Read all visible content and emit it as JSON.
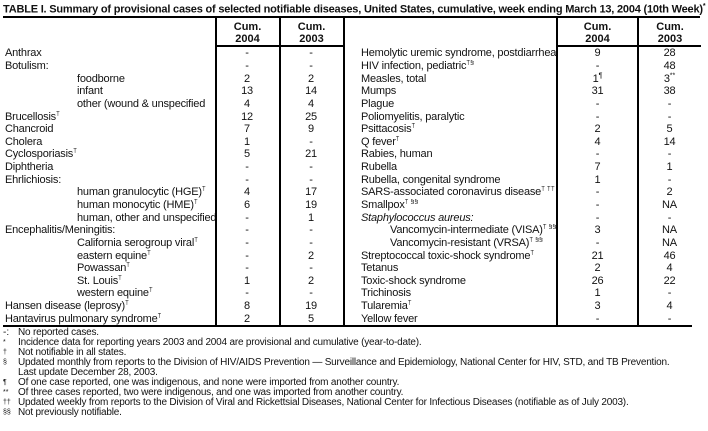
{
  "title": "TABLE I. Summary of provisional cases of selected notifiable diseases, United States, cumulative, week ending March 13, 2004 (10th Week)",
  "title_sup": "*",
  "columns": {
    "cum": "Cum.",
    "y2004": "2004",
    "y2003": "2003"
  },
  "left_rows": [
    {
      "label": "Anthrax",
      "cum2004": "-",
      "cum2003": "-"
    },
    {
      "label": "Botulism:",
      "cum2004": "-",
      "cum2003": "-"
    },
    {
      "label": "foodborne",
      "indent": true,
      "cum2004": "2",
      "cum2003": "2"
    },
    {
      "label": "infant",
      "indent": true,
      "cum2004": "13",
      "cum2003": "14"
    },
    {
      "label": "other (wound & unspecified",
      "indent": true,
      "cum2004": "4",
      "cum2003": "4"
    },
    {
      "label": "Brucellosis",
      "sup": "†",
      "cum2004": "12",
      "cum2003": "25"
    },
    {
      "label": "Chancroid",
      "cum2004": "7",
      "cum2003": "9"
    },
    {
      "label": "Cholera",
      "cum2004": "1",
      "cum2003": "-"
    },
    {
      "label": "Cyclosporiasis",
      "sup": "†",
      "cum2004": "5",
      "cum2003": "21"
    },
    {
      "label": "Diphtheria",
      "cum2004": "-",
      "cum2003": "-"
    },
    {
      "label": "Ehrlichiosis:",
      "cum2004": "-",
      "cum2003": "-"
    },
    {
      "label": "human granulocytic (HGE)",
      "sup": "†",
      "indent": true,
      "cum2004": "4",
      "cum2003": "17"
    },
    {
      "label": "human monocytic (HME)",
      "sup": "†",
      "indent": true,
      "cum2004": "6",
      "cum2003": "19"
    },
    {
      "label": "human, other and unspecified",
      "indent": true,
      "cum2004": "-",
      "cum2003": "1"
    },
    {
      "label": "Encephalitis/Meningitis:",
      "cum2004": "-",
      "cum2003": "-"
    },
    {
      "label": "California serogroup viral",
      "sup": "†",
      "indent": true,
      "cum2004": "-",
      "cum2003": "-"
    },
    {
      "label": "eastern equine",
      "sup": "†",
      "indent": true,
      "cum2004": "-",
      "cum2003": "2"
    },
    {
      "label": "Powassan",
      "sup": "†",
      "indent": true,
      "cum2004": "-",
      "cum2003": "-"
    },
    {
      "label": "St. Louis",
      "sup": "†",
      "indent": true,
      "cum2004": "1",
      "cum2003": "2"
    },
    {
      "label": "western equine",
      "sup": "†",
      "indent": true,
      "cum2004": "-",
      "cum2003": "-"
    },
    {
      "label": "Hansen disease (leprosy)",
      "sup": "†",
      "cum2004": "8",
      "cum2003": "19"
    },
    {
      "label": "Hantavirus pulmonary syndrome",
      "sup": "†",
      "cum2004": "2",
      "cum2003": "5"
    }
  ],
  "right_rows": [
    {
      "label": "Hemolytic uremic syndrome, postdiarrheal",
      "sup": "†",
      "cum2004": "9",
      "cum2003": "28"
    },
    {
      "label": "HIV infection, pediatric",
      "sup": "†§",
      "cum2004": "-",
      "cum2003": "48"
    },
    {
      "label": "Measles, total",
      "cum2004": "1",
      "cum2004_sup": "¶",
      "cum2003": "3",
      "cum2003_sup": "**"
    },
    {
      "label": "Mumps",
      "cum2004": "31",
      "cum2003": "38"
    },
    {
      "label": "Plague",
      "cum2004": "-",
      "cum2003": "-"
    },
    {
      "label": "Poliomyelitis, paralytic",
      "cum2004": "-",
      "cum2003": "-"
    },
    {
      "label": "Psittacosis",
      "sup": "†",
      "cum2004": "2",
      "cum2003": "5"
    },
    {
      "label": "Q fever",
      "sup": "†",
      "cum2004": "4",
      "cum2003": "14"
    },
    {
      "label": "Rabies, human",
      "cum2004": "-",
      "cum2003": "-"
    },
    {
      "label": "Rubella",
      "cum2004": "7",
      "cum2003": "1"
    },
    {
      "label": "Rubella, congenital syndrome",
      "cum2004": "1",
      "cum2003": "-"
    },
    {
      "label": "SARS-associated coronavirus disease",
      "sup": "† ††",
      "cum2004": "-",
      "cum2003": "2"
    },
    {
      "label": "Smallpox",
      "sup": "† §§",
      "cum2004": "-",
      "cum2003": "NA"
    },
    {
      "label": "Staphylococcus aureus:",
      "italic": true,
      "cum2004": "-",
      "cum2003": "-"
    },
    {
      "label": "Vancomycin-intermediate (VISA)",
      "sup": "† §§",
      "indent": true,
      "cum2004": "3",
      "cum2003": "NA"
    },
    {
      "label": "Vancomycin-resistant (VRSA)",
      "sup": "† §§",
      "indent": true,
      "cum2004": "-",
      "cum2003": "NA"
    },
    {
      "label": "Streptococcal toxic-shock syndrome",
      "sup": "†",
      "cum2004": "21",
      "cum2003": "46"
    },
    {
      "label": "Tetanus",
      "cum2004": "2",
      "cum2003": "4"
    },
    {
      "label": "Toxic-shock syndrome",
      "cum2004": "26",
      "cum2003": "22"
    },
    {
      "label": "Trichinosis",
      "cum2004": "1",
      "cum2003": "-"
    },
    {
      "label": "Tularemia",
      "sup": "†",
      "cum2004": "3",
      "cum2003": "4"
    },
    {
      "label": "Yellow fever",
      "cum2004": "-",
      "cum2003": "-"
    }
  ],
  "footnotes": [
    {
      "mark": "-:",
      "plain": true,
      "text": "No reported cases."
    },
    {
      "mark": "*",
      "text": "Incidence data for reporting years 2003 and 2004 are provisional and cumulative (year-to-date)."
    },
    {
      "mark": "†",
      "text": "Not notifiable in all states."
    },
    {
      "mark": "§",
      "text": "Updated monthly from reports to the Division of HIV/AIDS Prevention — Surveillance and Epidemiology, National Center for HIV, STD, and TB Prevention.",
      "text2": "Last update December 28, 2003."
    },
    {
      "mark": "¶",
      "text": "Of one case reported, one was indigenous, and none were imported from another country."
    },
    {
      "mark": "**",
      "text": "Of three cases reported, two were indigenous, and one was imported from another country."
    },
    {
      "mark": "††",
      "text": "Updated weekly from reports to the Division of Viral and Rickettsial Diseases, National Center for Infectious Diseases (notifiable as of July 2003)."
    },
    {
      "mark": "§§",
      "text": "Not previously notifiable."
    }
  ],
  "colors": {
    "text": "#121212",
    "rule": "#000000",
    "background": "#ffffff"
  }
}
